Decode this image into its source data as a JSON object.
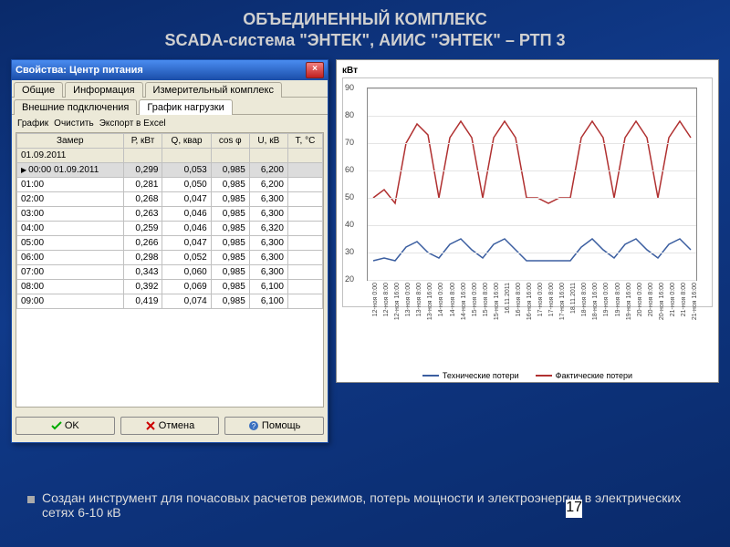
{
  "slide": {
    "title_line1": "ОБЪЕДИНЕННЫЙ КОМПЛЕКС",
    "title_line2": "SCADA-система \"ЭНТЕК\", АИИС \"ЭНТЕК\" – РТП 3",
    "bullet": "Создан инструмент для почасовых расчетов режимов, потерь мощности и электроэнергии в электрических сетях 6-10 кВ",
    "page_number": "17"
  },
  "dialog": {
    "title": "Свойства: Центр питания",
    "tabs_top": [
      "Общие",
      "Информация",
      "Измерительный комплекс"
    ],
    "tabs_bottom": [
      "Внешние подключения",
      "График нагрузки"
    ],
    "active_tab": "График нагрузки",
    "toolbar": [
      "График",
      "Очистить",
      "Экспорт в Excel"
    ],
    "columns": [
      "Замер",
      "Р, кВт",
      "Q, квар",
      "cos φ",
      "U, кВ",
      "Т, °С"
    ],
    "subheader": "01.09.2011",
    "rows": [
      {
        "t": "00:00 01.09.2011",
        "p": "0,299",
        "q": "0,053",
        "c": "0,985",
        "u": "6,200"
      },
      {
        "t": "01:00",
        "p": "0,281",
        "q": "0,050",
        "c": "0,985",
        "u": "6,200"
      },
      {
        "t": "02:00",
        "p": "0,268",
        "q": "0,047",
        "c": "0,985",
        "u": "6,300"
      },
      {
        "t": "03:00",
        "p": "0,263",
        "q": "0,046",
        "c": "0,985",
        "u": "6,300"
      },
      {
        "t": "04:00",
        "p": "0,259",
        "q": "0,046",
        "c": "0,985",
        "u": "6,320"
      },
      {
        "t": "05:00",
        "p": "0,266",
        "q": "0,047",
        "c": "0,985",
        "u": "6,300"
      },
      {
        "t": "06:00",
        "p": "0,298",
        "q": "0,052",
        "c": "0,985",
        "u": "6,300"
      },
      {
        "t": "07:00",
        "p": "0,343",
        "q": "0,060",
        "c": "0,985",
        "u": "6,300"
      },
      {
        "t": "08:00",
        "p": "0,392",
        "q": "0,069",
        "c": "0,985",
        "u": "6,100"
      },
      {
        "t": "09:00",
        "p": "0,419",
        "q": "0,074",
        "c": "0,985",
        "u": "6,100"
      }
    ],
    "buttons": {
      "ok": "OK",
      "cancel": "Отмена",
      "help": "Помощь"
    }
  },
  "chart": {
    "type": "line",
    "title": "кВт",
    "ylim": [
      20,
      90
    ],
    "ytick_step": 10,
    "yticks": [
      20,
      30,
      40,
      50,
      60,
      70,
      80,
      90
    ],
    "x_categories": [
      "12-ноя 0:00",
      "12-ноя 8:00",
      "12-ноя 16:00",
      "13-ноя 0:00",
      "13-ноя 8:00",
      "13-ноя 16:00",
      "14-ноя 0:00",
      "14-ноя 8:00",
      "14-ноя 16:00",
      "15-ноя 0:00",
      "15-ноя 8:00",
      "15-ноя 16:00",
      "16.11.2011",
      "16-ноя 8:00",
      "16-ноя 16:00",
      "17-ноя 0:00",
      "17-ноя 8:00",
      "17-ноя 16:00",
      "18.11.2011",
      "18-ноя 8:00",
      "18-ноя 16:00",
      "19-ноя 0:00",
      "19-ноя 8:00",
      "19-ноя 16:00",
      "20-ноя 0:00",
      "20-ноя 8:00",
      "20-ноя 16:00",
      "21-ноя 0:00",
      "21-ноя 8:00",
      "21-ноя 16:00"
    ],
    "series": [
      {
        "name": "Технические потери",
        "color": "#3b5ea0",
        "values": [
          27,
          28,
          27,
          32,
          34,
          30,
          28,
          33,
          35,
          31,
          28,
          33,
          35,
          31,
          27,
          27,
          27,
          27,
          27,
          32,
          35,
          31,
          28,
          33,
          35,
          31,
          28,
          33,
          35,
          31
        ]
      },
      {
        "name": "Фактические потери",
        "color": "#b03030",
        "values": [
          50,
          53,
          48,
          70,
          77,
          73,
          50,
          72,
          78,
          72,
          50,
          72,
          78,
          72,
          50,
          50,
          48,
          50,
          50,
          72,
          78,
          72,
          50,
          72,
          78,
          72,
          50,
          72,
          78,
          72
        ]
      }
    ],
    "grid_color": "#e4e4e4",
    "background_color": "#ffffff",
    "line_width": 1.5
  }
}
